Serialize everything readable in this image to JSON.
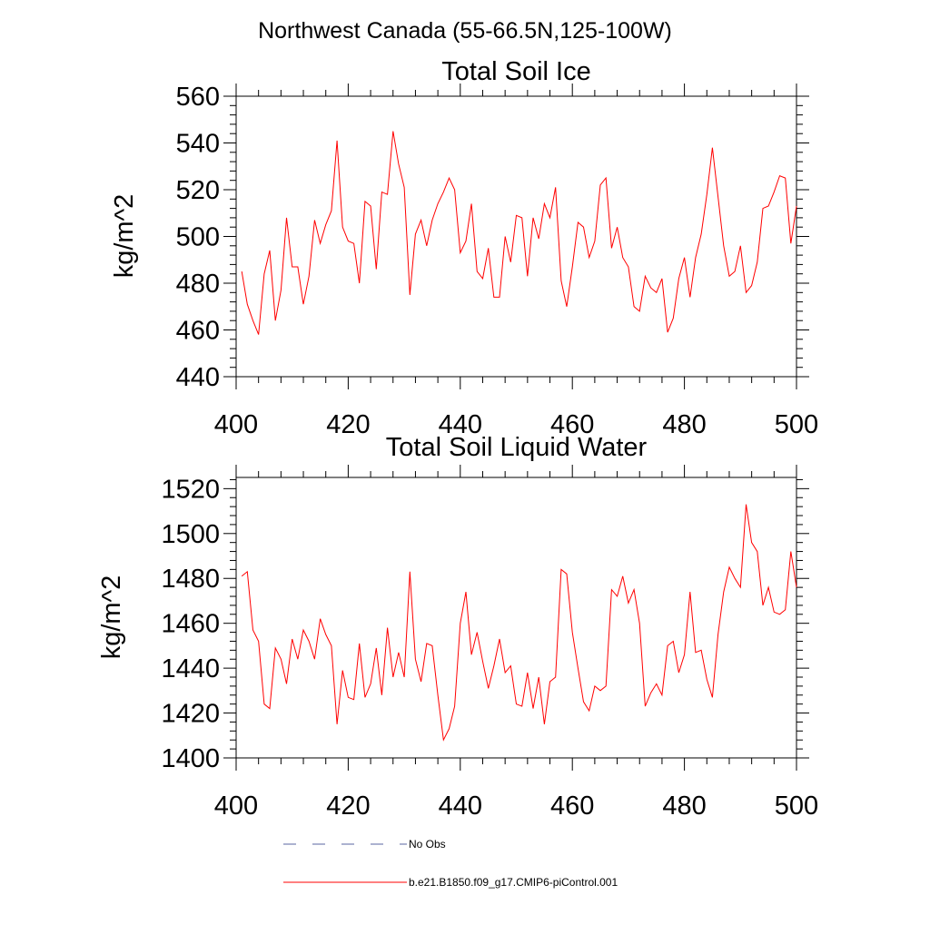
{
  "main_title": "Northwest Canada (55-66.5N,125-100W)",
  "legend": {
    "items": [
      {
        "label": "No Obs",
        "color": "#5a64a0",
        "dash": true
      },
      {
        "label": "b.e21.B1850.f09_g17.CMIP6-piControl.001",
        "color": "#ff0000",
        "dash": false
      }
    ]
  },
  "chart_data": [
    {
      "type": "line",
      "title": "Total Soil Ice",
      "xlabel": "",
      "ylabel": "kg/m^2",
      "xlim": [
        400,
        500
      ],
      "ylim": [
        440,
        560
      ],
      "x_ticks": [
        400,
        420,
        440,
        460,
        480,
        500
      ],
      "y_ticks": [
        440,
        460,
        480,
        500,
        520,
        540,
        560
      ],
      "grid": false,
      "x": [
        401,
        402,
        403,
        404,
        405,
        406,
        407,
        408,
        409,
        410,
        411,
        412,
        413,
        414,
        415,
        416,
        417,
        418,
        419,
        420,
        421,
        422,
        423,
        424,
        425,
        426,
        427,
        428,
        429,
        430,
        431,
        432,
        433,
        434,
        435,
        436,
        437,
        438,
        439,
        440,
        441,
        442,
        443,
        444,
        445,
        446,
        447,
        448,
        449,
        450,
        451,
        452,
        453,
        454,
        455,
        456,
        457,
        458,
        459,
        460,
        461,
        462,
        463,
        464,
        465,
        466,
        467,
        468,
        469,
        470,
        471,
        472,
        473,
        474,
        475,
        476,
        477,
        478,
        479,
        480,
        481,
        482,
        483,
        484,
        485,
        486,
        487,
        488,
        489,
        490,
        491,
        492,
        493,
        494,
        495,
        496,
        497,
        498,
        499,
        500
      ],
      "series": [
        {
          "name": "b.e21.B1850.f09_g17.CMIP6-piControl.001",
          "color": "#ff0000",
          "values": [
            485,
            471,
            464,
            458,
            484,
            494,
            464,
            477,
            508,
            487,
            487,
            471,
            483,
            507,
            497,
            505,
            511,
            541,
            504,
            498,
            497,
            480,
            515,
            513,
            486,
            519,
            518,
            545,
            531,
            521,
            475,
            501,
            507,
            496,
            507,
            514,
            519,
            525,
            520,
            493,
            498,
            514,
            485,
            482,
            495,
            474,
            474,
            500,
            489,
            509,
            508,
            483,
            508,
            499,
            514,
            508,
            521,
            481,
            470,
            487,
            506,
            504,
            491,
            498,
            522,
            525,
            495,
            504,
            491,
            487,
            470,
            468,
            483,
            478,
            476,
            482,
            459,
            465,
            482,
            491,
            474,
            491,
            501,
            518,
            538,
            517,
            496,
            483,
            485,
            496,
            476,
            479,
            489,
            512,
            513,
            519,
            526,
            525,
            497,
            513
          ]
        }
      ]
    },
    {
      "type": "line",
      "title": "Total Soil Liquid Water",
      "xlabel": "",
      "ylabel": "kg/m^2",
      "xlim": [
        400,
        500
      ],
      "ylim": [
        1400,
        1525
      ],
      "x_ticks": [
        400,
        420,
        440,
        460,
        480,
        500
      ],
      "y_ticks": [
        1400,
        1420,
        1440,
        1460,
        1480,
        1500,
        1520
      ],
      "grid": false,
      "x": [
        401,
        402,
        403,
        404,
        405,
        406,
        407,
        408,
        409,
        410,
        411,
        412,
        413,
        414,
        415,
        416,
        417,
        418,
        419,
        420,
        421,
        422,
        423,
        424,
        425,
        426,
        427,
        428,
        429,
        430,
        431,
        432,
        433,
        434,
        435,
        436,
        437,
        438,
        439,
        440,
        441,
        442,
        443,
        444,
        445,
        446,
        447,
        448,
        449,
        450,
        451,
        452,
        453,
        454,
        455,
        456,
        457,
        458,
        459,
        460,
        461,
        462,
        463,
        464,
        465,
        466,
        467,
        468,
        469,
        470,
        471,
        472,
        473,
        474,
        475,
        476,
        477,
        478,
        479,
        480,
        481,
        482,
        483,
        484,
        485,
        486,
        487,
        488,
        489,
        490,
        491,
        492,
        493,
        494,
        495,
        496,
        497,
        498,
        499,
        500
      ],
      "series": [
        {
          "name": "b.e21.B1850.f09_g17.CMIP6-piControl.001",
          "color": "#ff0000",
          "values": [
            1481,
            1483,
            1457,
            1452,
            1424,
            1422,
            1449,
            1444,
            1433,
            1453,
            1444,
            1457,
            1452,
            1444,
            1462,
            1455,
            1450,
            1415,
            1439,
            1427,
            1426,
            1451,
            1427,
            1433,
            1449,
            1428,
            1458,
            1436,
            1447,
            1436,
            1483,
            1444,
            1434,
            1451,
            1450,
            1428,
            1408,
            1413,
            1423,
            1460,
            1474,
            1446,
            1456,
            1443,
            1431,
            1441,
            1453,
            1438,
            1441,
            1424,
            1423,
            1438,
            1422,
            1436,
            1415,
            1434,
            1436,
            1484,
            1482,
            1456,
            1440,
            1425,
            1421,
            1432,
            1430,
            1432,
            1475,
            1472,
            1481,
            1469,
            1475,
            1460,
            1423,
            1429,
            1433,
            1428,
            1450,
            1452,
            1438,
            1446,
            1474,
            1447,
            1448,
            1435,
            1427,
            1455,
            1474,
            1485,
            1480,
            1476,
            1513,
            1496,
            1492,
            1468,
            1476,
            1465,
            1464,
            1466,
            1492,
            1476
          ]
        }
      ]
    }
  ]
}
